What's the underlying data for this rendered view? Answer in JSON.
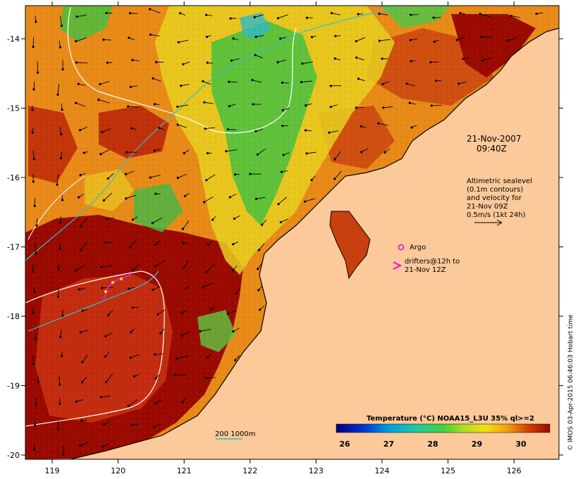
{
  "date_label": "21-Nov-2007",
  "time_label": "09:40Z",
  "altimetry": {
    "line1": "Altimetric sealevel",
    "line2": "(0.1m contours)",
    "line3": "and velocity for",
    "line4": "21-Nov 09Z",
    "line5": "0.5m/s (1kt 24h)"
  },
  "argo_label": "Argo",
  "drifter": {
    "line1": "drifters@12h to",
    "line2": "21-Nov 12Z"
  },
  "depth_legend": "200  1000m",
  "colorbar": {
    "title": "Temperature (°C) NOAA15_L3U 35% ql>=2",
    "ticks": [
      "26",
      "27",
      "28",
      "29",
      "30"
    ]
  },
  "credit": "© IMOS 03-Apr-2015 06:46:03 Hobart time",
  "axes": {
    "x_ticks": [
      "119",
      "120",
      "121",
      "122",
      "123",
      "124",
      "125",
      "126"
    ],
    "y_ticks": [
      "-14",
      "-15",
      "-16",
      "-17",
      "-18",
      "-19",
      "-20"
    ]
  },
  "colors": {
    "land": "#fbc99a",
    "warm": "#9a0a00",
    "hot": "#c03000",
    "orange": "#e07a10",
    "yellow": "#e8d020",
    "green": "#40c040",
    "cyan": "#30b8c8",
    "magenta": "#e020e0"
  }
}
